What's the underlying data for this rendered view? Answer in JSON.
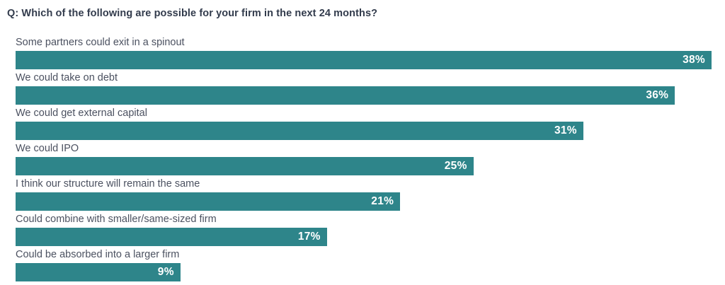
{
  "title": "Q: Which of the following are possible for your firm in the next 24 months?",
  "colors": {
    "bar": "#2e858a",
    "title_text": "#323b4c",
    "label_text": "#4b5160",
    "value_text": "#ffffff",
    "background": "#ffffff"
  },
  "chart_data": {
    "type": "bar",
    "orientation": "horizontal",
    "title": "Q: Which of the following are possible for your firm in the next 24 months?",
    "categories": [
      "Some partners could exit in a spinout",
      "We could take on debt",
      "We could get external capital",
      "We could IPO",
      "I think our structure will remain the same",
      "Could combine with smaller/same-sized firm",
      "Could be absorbed into a larger firm"
    ],
    "values": [
      38,
      36,
      31,
      25,
      21,
      17,
      9
    ],
    "value_labels": [
      "38%",
      "36%",
      "31%",
      "25%",
      "21%",
      "17%",
      "9%"
    ],
    "xlabel": "",
    "ylabel": "",
    "xlim": [
      0,
      38
    ],
    "grid": false,
    "legend": false,
    "value_label_position": "inside-right"
  }
}
